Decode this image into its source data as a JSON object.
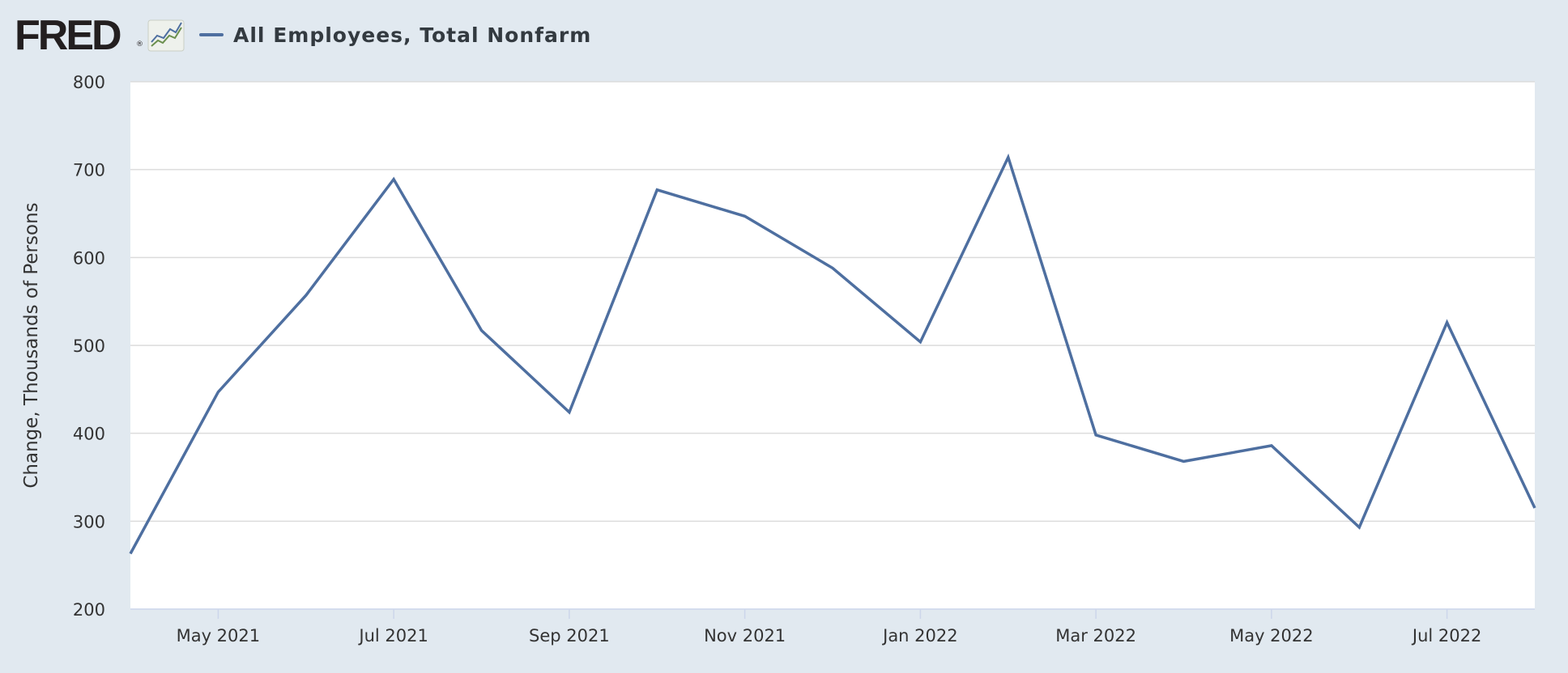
{
  "header": {
    "logo_text": "FRED",
    "logo_reg": "®",
    "legend_label": "All Employees, Total Nonfarm"
  },
  "colors": {
    "series": "#4e6fa0",
    "plot_background": "#ffffff",
    "page_background": "#e1e9f0",
    "gridline": "#dcdcdc"
  },
  "icons": [
    "fred-graph-icon"
  ],
  "chart_data": {
    "type": "line",
    "title": "",
    "ylabel": "Change, Thousands of Persons",
    "xlabel": "",
    "ylim": [
      200,
      800
    ],
    "yticks": [
      200,
      300,
      400,
      500,
      600,
      700,
      800
    ],
    "xlim": [
      "2021-04",
      "2022-08"
    ],
    "xticks": [
      {
        "date": "2021-05",
        "label": "May 2021"
      },
      {
        "date": "2021-07",
        "label": "Jul 2021"
      },
      {
        "date": "2021-09",
        "label": "Sep 2021"
      },
      {
        "date": "2021-11",
        "label": "Nov 2021"
      },
      {
        "date": "2022-01",
        "label": "Jan 2022"
      },
      {
        "date": "2022-03",
        "label": "Mar 2022"
      },
      {
        "date": "2022-05",
        "label": "May 2022"
      },
      {
        "date": "2022-07",
        "label": "Jul 2022"
      }
    ],
    "grid": true,
    "legend": "top-left",
    "series": [
      {
        "name": "All Employees, Total Nonfarm",
        "x": [
          "2021-04",
          "2021-05",
          "2021-06",
          "2021-07",
          "2021-08",
          "2021-09",
          "2021-10",
          "2021-11",
          "2021-12",
          "2022-01",
          "2022-02",
          "2022-03",
          "2022-04",
          "2022-05",
          "2022-06",
          "2022-07",
          "2022-08"
        ],
        "values": [
          263,
          447,
          557,
          689,
          517,
          424,
          677,
          647,
          588,
          504,
          714,
          398,
          368,
          386,
          293,
          526,
          315
        ]
      }
    ]
  }
}
